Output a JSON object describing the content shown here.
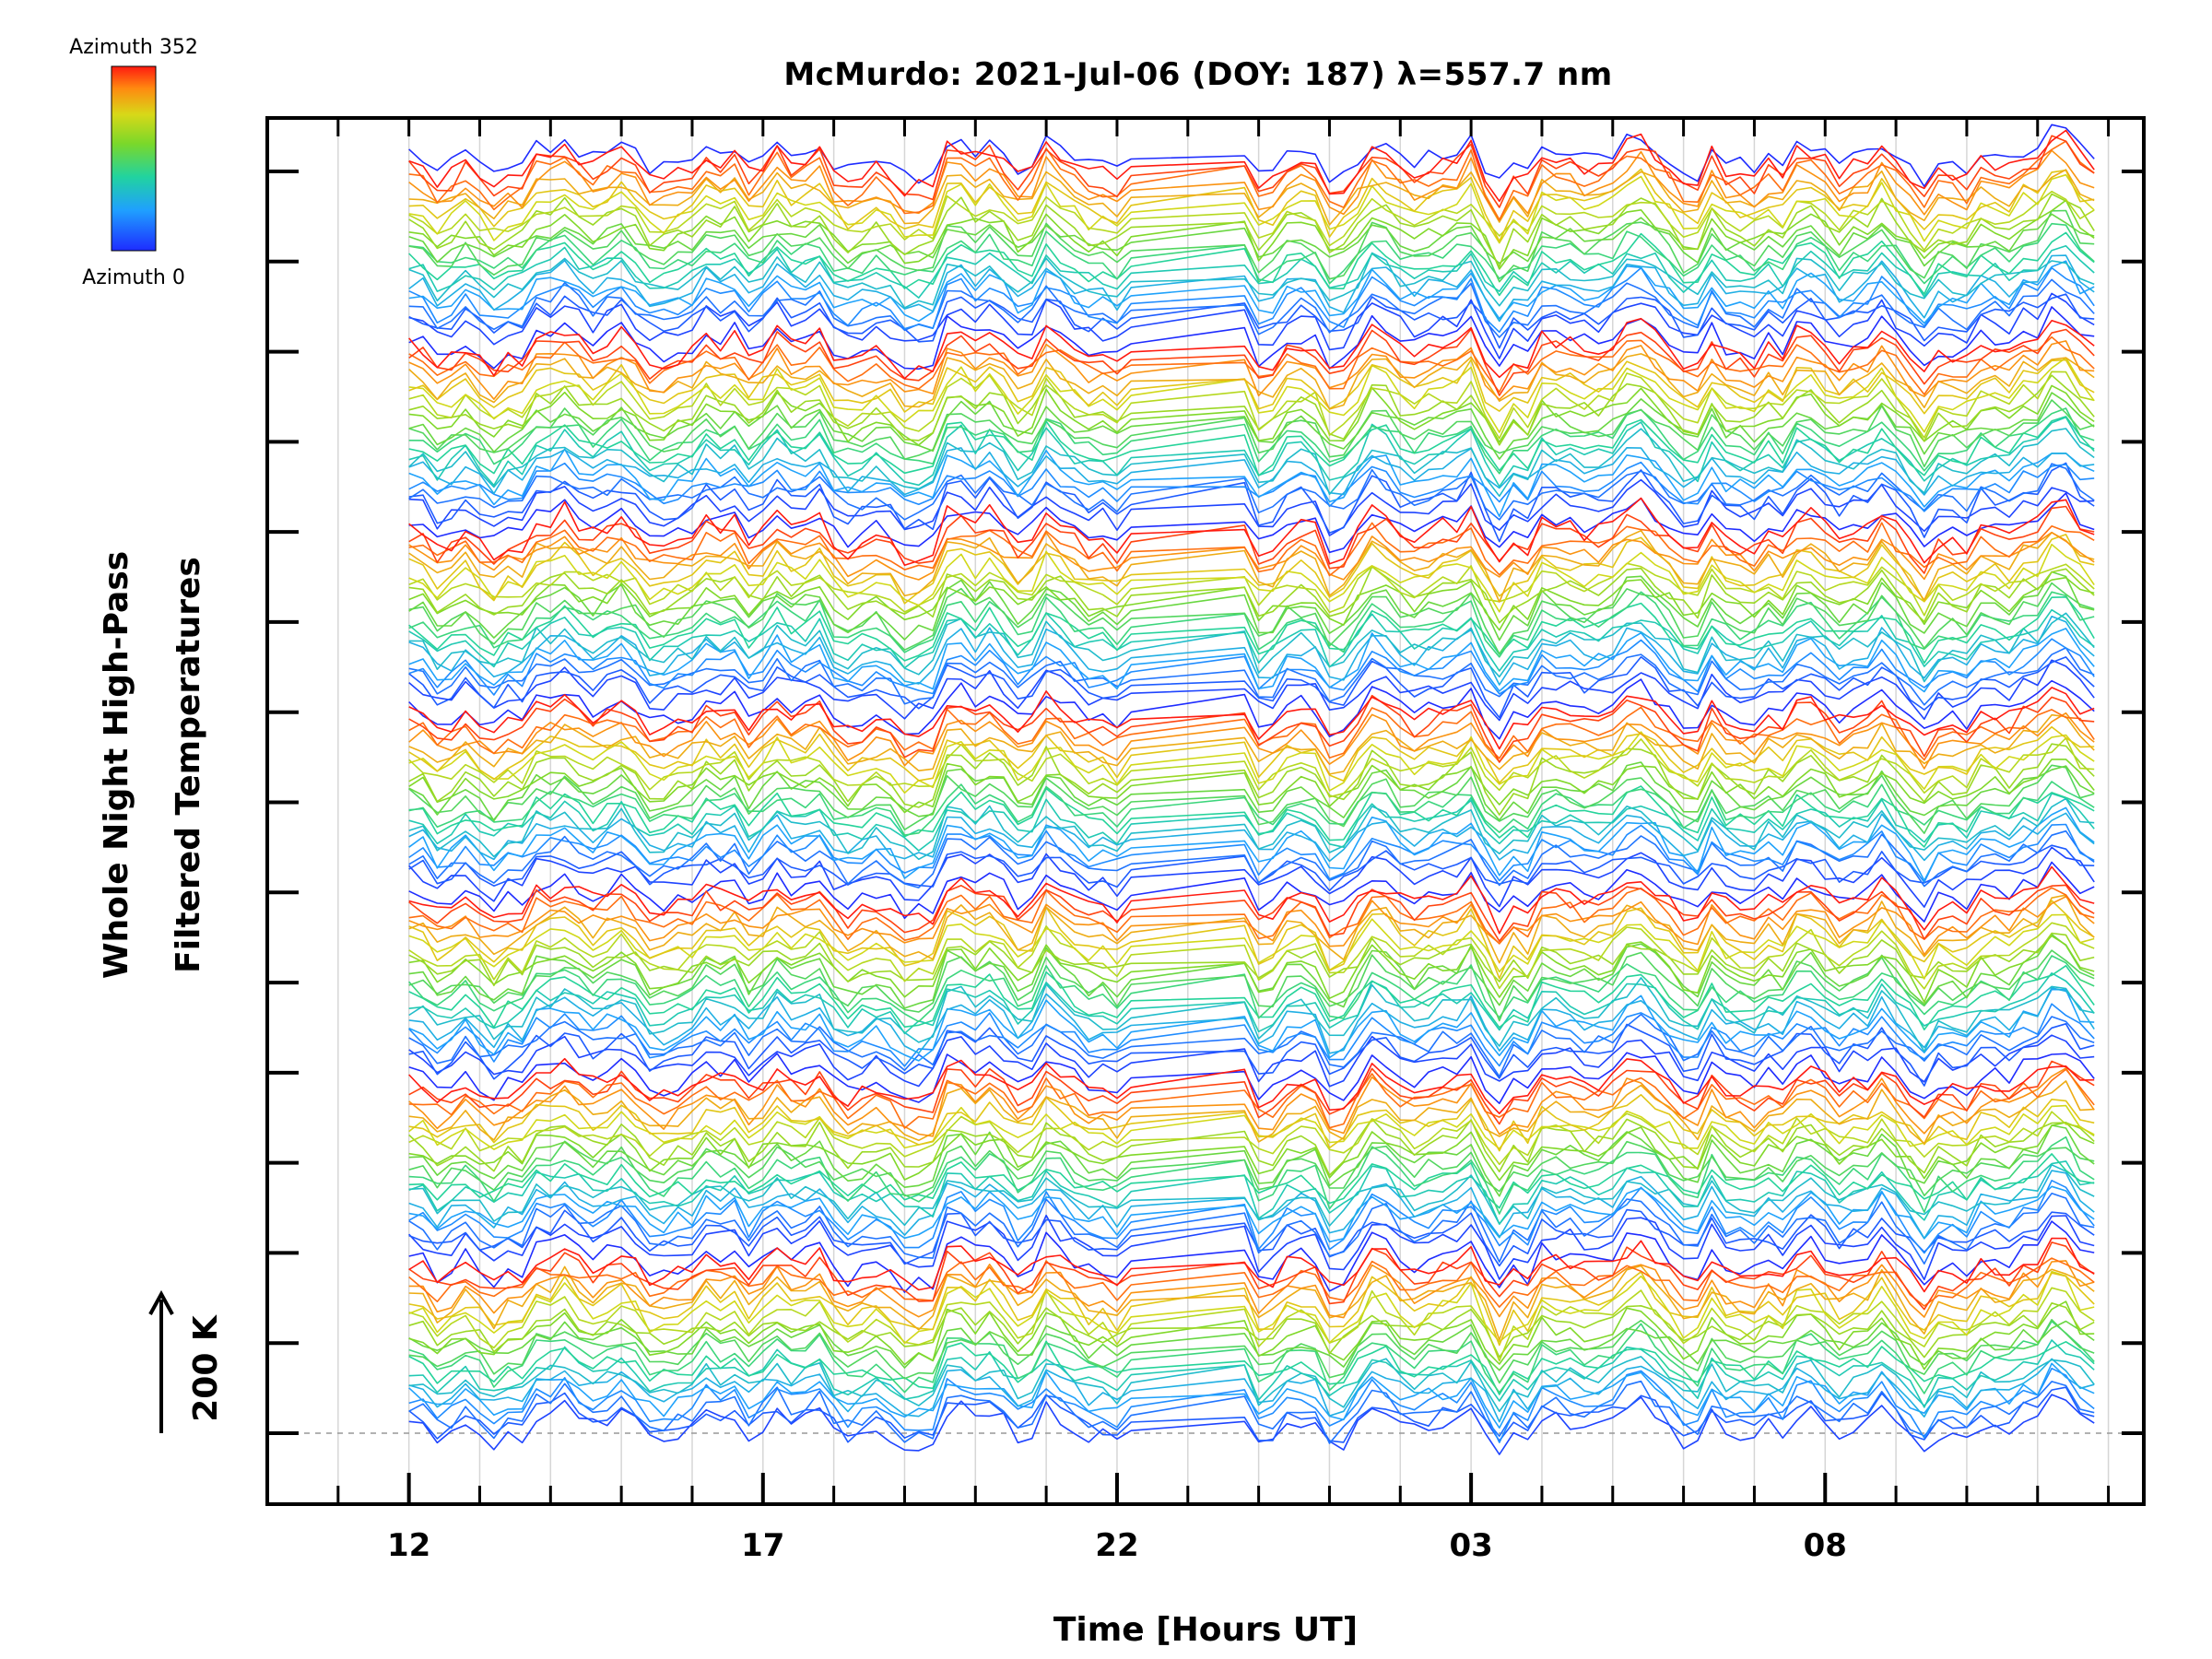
{
  "chart_data": {
    "type": "line",
    "title": "McMurdo: 2021-Jul-06 (DOY: 187) λ=557.7 nm",
    "xlabel": "Time [Hours UT]",
    "ylabel_line1": "Whole Night High-Pass",
    "ylabel_line2": "Filtered Temperatures",
    "scale_label": "200 K",
    "legend": {
      "top_label": "Azimuth 352",
      "bottom_label": "Azimuth 0",
      "colormap": "rainbow (blue → cyan → green → yellow → red)"
    },
    "x_range_hours_since_12UT": [
      -2,
      24.5
    ],
    "x_tick_labels": [
      "12",
      "17",
      "22",
      "03",
      "08"
    ],
    "x_tick_label_hours": [
      0,
      5,
      10,
      15,
      20
    ],
    "x_minor_tick_step_hours": 1,
    "data_time_range_hours": [
      0,
      23.8
    ],
    "data_gap_hours": [
      10.2,
      11.6
    ],
    "y_major_tick_count": 15,
    "groups_stacked": 7,
    "azimuth_step_deg": 16,
    "azimuth_count": 23,
    "series_description": "Stacked high-pass filtered temperature traces, one per azimuth (0–352°), colored by azimuth, repeated in vertically offset groups."
  }
}
